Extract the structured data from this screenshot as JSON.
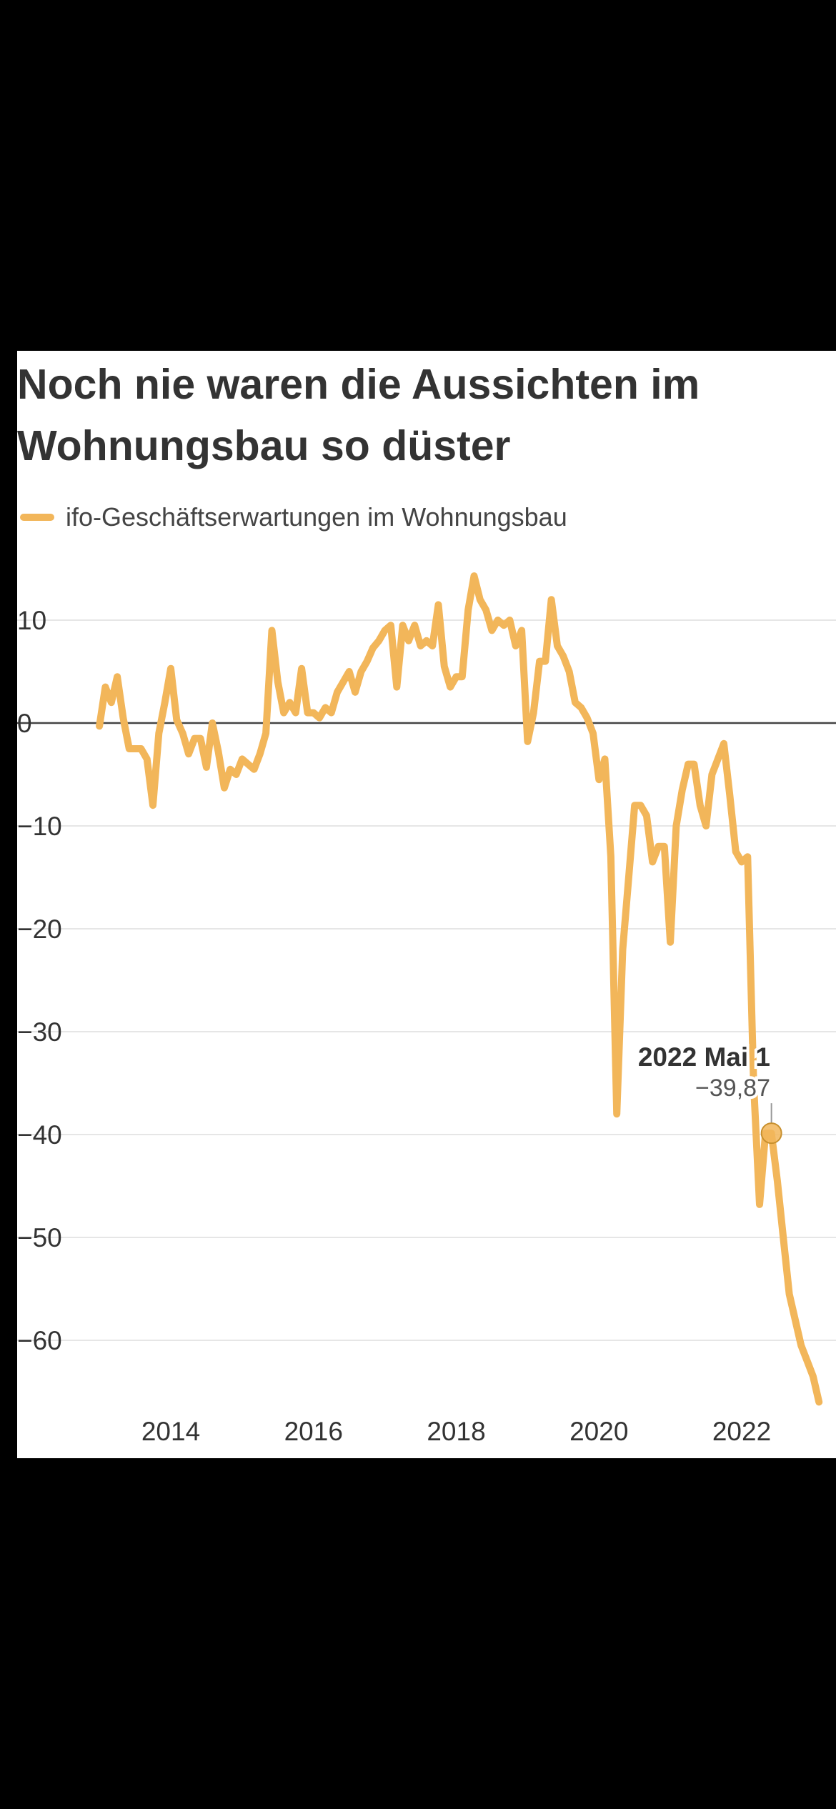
{
  "chart_data": {
    "type": "line",
    "title": "Noch nie waren die Aussichten im Wohnungsbau so düster",
    "xlabel": "",
    "ylabel": "",
    "ylim": [
      -67,
      17
    ],
    "xlim": [
      2012.83,
      2023.17
    ],
    "y_ticks": [
      10,
      0,
      -10,
      -20,
      -30,
      -40,
      -50,
      -60
    ],
    "y_tick_labels": [
      "10",
      "0",
      "−10",
      "−20",
      "−30",
      "−40",
      "−50",
      "−60"
    ],
    "x_ticks": [
      2014,
      2016,
      2018,
      2020,
      2022
    ],
    "x_tick_labels": [
      "2014",
      "2016",
      "2018",
      "2020",
      "2022"
    ],
    "grid": true,
    "legend_position": "top-left",
    "series": [
      {
        "name": "ifo-Geschäftserwartungen im Wohnungsbau",
        "color": "#f2b65a",
        "x": [
          2013.0,
          2013.083,
          2013.167,
          2013.25,
          2013.333,
          2013.417,
          2013.5,
          2013.583,
          2013.667,
          2013.75,
          2013.833,
          2013.917,
          2014.0,
          2014.083,
          2014.167,
          2014.25,
          2014.333,
          2014.417,
          2014.5,
          2014.583,
          2014.667,
          2014.75,
          2014.833,
          2014.917,
          2015.0,
          2015.083,
          2015.167,
          2015.25,
          2015.333,
          2015.417,
          2015.5,
          2015.583,
          2015.667,
          2015.75,
          2015.833,
          2015.917,
          2016.0,
          2016.083,
          2016.167,
          2016.25,
          2016.333,
          2016.417,
          2016.5,
          2016.583,
          2016.667,
          2016.75,
          2016.833,
          2016.917,
          2017.0,
          2017.083,
          2017.167,
          2017.25,
          2017.333,
          2017.417,
          2017.5,
          2017.583,
          2017.667,
          2017.75,
          2017.833,
          2017.917,
          2018.0,
          2018.083,
          2018.167,
          2018.25,
          2018.333,
          2018.417,
          2018.5,
          2018.583,
          2018.667,
          2018.75,
          2018.833,
          2018.917,
          2019.0,
          2019.083,
          2019.167,
          2019.25,
          2019.333,
          2019.417,
          2019.5,
          2019.583,
          2019.667,
          2019.75,
          2019.833,
          2019.917,
          2020.0,
          2020.083,
          2020.167,
          2020.25,
          2020.333,
          2020.417,
          2020.5,
          2020.583,
          2020.667,
          2020.75,
          2020.833,
          2020.917,
          2021.0,
          2021.083,
          2021.167,
          2021.25,
          2021.333,
          2021.417,
          2021.5,
          2021.583,
          2021.667,
          2021.75,
          2021.833,
          2021.917,
          2022.0,
          2022.083,
          2022.167,
          2022.25,
          2022.333,
          2022.417,
          2022.5,
          2022.583,
          2022.667,
          2022.75,
          2022.833,
          2022.917,
          2023.0,
          2023.083
        ],
        "values": [
          -0.3,
          3.5,
          2,
          4.5,
          0.5,
          -2.5,
          -2.5,
          -2.5,
          -3.5,
          -8,
          -1,
          2,
          5.3,
          0.3,
          -1,
          -3,
          -1.5,
          -1.5,
          -4.3,
          0,
          -2.8,
          -6.3,
          -4.5,
          -5,
          -3.5,
          -4,
          -4.5,
          -3,
          -1,
          9,
          4,
          1,
          2,
          1,
          5.3,
          1,
          1,
          0.5,
          1.5,
          1,
          3,
          4,
          5,
          3,
          5,
          6,
          7.3,
          8,
          9,
          9.5,
          3.5,
          9.5,
          8,
          9.5,
          7.5,
          8,
          7.5,
          11.5,
          5.5,
          3.5,
          4.5,
          4.5,
          11,
          14.3,
          12,
          11,
          9,
          10,
          9.5,
          10,
          7.5,
          9,
          -1.8,
          1,
          6,
          6,
          12,
          7.5,
          6.5,
          5,
          2,
          1.5,
          0.5,
          -1,
          -5.5,
          -3.5,
          -13,
          -38,
          -22,
          -15,
          -8,
          -8,
          -9,
          -13.5,
          -12,
          -12,
          -21.3,
          -10,
          -6.5,
          -4,
          -4,
          -8,
          -10,
          -5,
          -3.5,
          -2,
          -7,
          -12.5,
          -13.5,
          -13,
          -35,
          -46.8,
          -39.87,
          -39.87,
          -44.5,
          -50,
          -55.5,
          -58,
          -60.5,
          -62,
          -63.5,
          -66
        ]
      }
    ],
    "annotation": {
      "x": 2022.417,
      "y": -39.87,
      "title": "2022 Mai 1",
      "value_label": "−39,87"
    }
  }
}
